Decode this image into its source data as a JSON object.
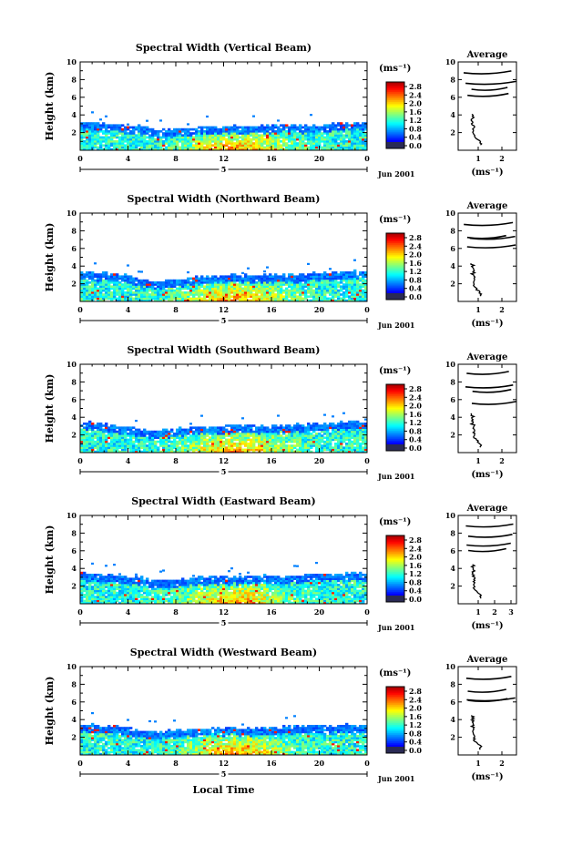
{
  "chart_data": [
    {
      "type": "heatmap",
      "title": "Spectral Width (Vertical Beam)",
      "ylabel": "Height (km)",
      "y_ticks": [
        "2",
        "4",
        "6",
        "8",
        "10"
      ],
      "ylim": [
        0,
        10
      ],
      "x_ticks": [
        "0",
        "4",
        "8",
        "12",
        "16",
        "20",
        "0"
      ],
      "xlim": [
        0,
        24
      ],
      "date_label": "Jun 2001",
      "date_marker": "5",
      "colorbar": {
        "unit": "(ms⁻¹)",
        "ticks": [
          "2.8",
          "2.4",
          "2.0",
          "1.6",
          "1.2",
          "0.8",
          "0.4",
          "0.0"
        ]
      },
      "layer_top_km": [
        3.1,
        3.0,
        2.9,
        2.8,
        2.7,
        2.6,
        2.3,
        2.2,
        2.3,
        2.5,
        2.6,
        2.6,
        2.6,
        2.7,
        2.6,
        2.6,
        2.7,
        2.8,
        2.8,
        2.7,
        2.8,
        2.9,
        3.0,
        3.0
      ],
      "average": {
        "title": "Average",
        "xlabel": "(ms⁻¹)",
        "x_ticks": [
          "1",
          "2"
        ],
        "y_ticks": [
          "2",
          "4",
          "6",
          "8",
          "10"
        ]
      }
    },
    {
      "type": "heatmap",
      "title": "Spectral Width (Northward Beam)",
      "ylabel": "Height (km)",
      "y_ticks": [
        "2",
        "4",
        "6",
        "8",
        "10"
      ],
      "ylim": [
        0,
        10
      ],
      "x_ticks": [
        "0",
        "4",
        "8",
        "12",
        "16",
        "20",
        "0"
      ],
      "xlim": [
        0,
        24
      ],
      "date_label": "Jun 2001",
      "date_marker": "5",
      "colorbar": {
        "unit": "(ms⁻¹)",
        "ticks": [
          "2.8",
          "2.4",
          "2.0",
          "1.6",
          "1.2",
          "0.8",
          "0.4",
          "0.0"
        ]
      },
      "layer_top_km": [
        3.3,
        3.2,
        3.1,
        3.0,
        2.9,
        2.5,
        2.2,
        2.3,
        2.4,
        2.6,
        2.7,
        2.8,
        2.8,
        2.9,
        2.8,
        2.8,
        2.9,
        2.9,
        2.9,
        3.0,
        3.1,
        3.1,
        3.2,
        3.3
      ],
      "average": {
        "title": "Average",
        "xlabel": "(ms⁻¹)",
        "x_ticks": [
          "1",
          "2"
        ],
        "y_ticks": [
          "2",
          "4",
          "6",
          "8",
          "10"
        ]
      }
    },
    {
      "type": "heatmap",
      "title": "Spectral Width (Southward Beam)",
      "ylabel": "Height (km)",
      "y_ticks": [
        "2",
        "4",
        "6",
        "8",
        "10"
      ],
      "ylim": [
        0,
        10
      ],
      "x_ticks": [
        "0",
        "4",
        "8",
        "12",
        "16",
        "20",
        "0"
      ],
      "xlim": [
        0,
        24
      ],
      "date_label": "Jun 2001",
      "date_marker": "5",
      "colorbar": {
        "unit": "(ms⁻¹)",
        "ticks": [
          "2.8",
          "2.4",
          "2.0",
          "1.6",
          "1.2",
          "0.8",
          "0.4",
          "0.0"
        ]
      },
      "layer_top_km": [
        3.5,
        3.3,
        3.1,
        3.0,
        2.8,
        2.6,
        2.4,
        2.4,
        2.6,
        2.7,
        2.8,
        2.9,
        2.9,
        3.0,
        2.9,
        2.9,
        3.0,
        3.0,
        3.1,
        3.1,
        3.2,
        3.3,
        3.4,
        3.4
      ],
      "average": {
        "title": "Average",
        "xlabel": "(ms⁻¹)",
        "x_ticks": [
          "1",
          "2"
        ],
        "y_ticks": [
          "2",
          "4",
          "6",
          "8",
          "10"
        ]
      }
    },
    {
      "type": "heatmap",
      "title": "Spectral Width (Eastward Beam)",
      "ylabel": "Height (km)",
      "y_ticks": [
        "2",
        "4",
        "6",
        "8",
        "10"
      ],
      "ylim": [
        0,
        10
      ],
      "x_ticks": [
        "0",
        "4",
        "8",
        "12",
        "16",
        "20",
        "0"
      ],
      "xlim": [
        0,
        24
      ],
      "date_label": "Jun 2001",
      "date_marker": "5",
      "colorbar": {
        "unit": "(ms⁻¹)",
        "ticks": [
          "2.8",
          "2.4",
          "2.0",
          "1.6",
          "1.2",
          "0.8",
          "0.4",
          "0.0"
        ]
      },
      "layer_top_km": [
        3.4,
        3.3,
        3.2,
        3.1,
        3.0,
        2.9,
        2.6,
        2.5,
        2.6,
        2.8,
        2.9,
        3.0,
        2.9,
        3.0,
        3.0,
        3.1,
        3.1,
        3.0,
        3.1,
        3.2,
        3.2,
        3.3,
        3.3,
        3.4
      ],
      "average": {
        "title": "Average",
        "xlabel": "(ms⁻¹)",
        "x_ticks": [
          "1",
          "2",
          "3"
        ],
        "y_ticks": [
          "2",
          "4",
          "6",
          "8",
          "10"
        ]
      }
    },
    {
      "type": "heatmap",
      "title": "Spectral Width (Westward Beam)",
      "ylabel": "Height (km)",
      "y_ticks": [
        "2",
        "4",
        "6",
        "8",
        "10"
      ],
      "ylim": [
        0,
        10
      ],
      "x_ticks": [
        "0",
        "4",
        "8",
        "12",
        "16",
        "20",
        "0"
      ],
      "xlim": [
        0,
        24
      ],
      "date_label": "Jun 2001",
      "date_marker": "5",
      "colorbar": {
        "unit": "(ms⁻¹)",
        "ticks": [
          "2.8",
          "2.4",
          "2.0",
          "1.6",
          "1.2",
          "0.8",
          "0.4",
          "0.0"
        ]
      },
      "layer_top_km": [
        3.4,
        3.3,
        3.2,
        3.1,
        2.9,
        2.7,
        2.5,
        2.6,
        2.7,
        2.8,
        2.9,
        3.0,
        3.0,
        3.0,
        2.9,
        3.0,
        3.0,
        3.1,
        3.1,
        3.1,
        3.2,
        3.2,
        3.3,
        3.3
      ],
      "average": {
        "title": "Average",
        "xlabel": "(ms⁻¹)",
        "x_ticks": [
          "1",
          "2"
        ],
        "y_ticks": [
          "2",
          "4",
          "6",
          "8",
          "10"
        ]
      }
    }
  ],
  "footer": {
    "xlabel": "Local Time"
  },
  "colors": {
    "axis": "#000000",
    "background": "#ffffff"
  }
}
